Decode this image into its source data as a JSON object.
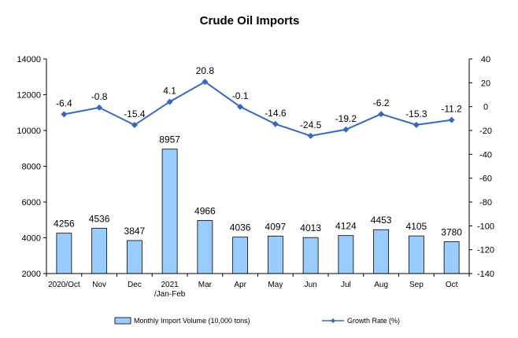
{
  "chart_data": {
    "type": "bar+line",
    "title": "Crude Oil Imports",
    "categories": [
      "2020/Oct",
      "Nov",
      "Dec",
      "2021\n/Jan-Feb",
      "Mar",
      "Apr",
      "May",
      "Jun",
      "Jul",
      "Aug",
      "Sep",
      "Oct"
    ],
    "series": [
      {
        "name": "Monthly Import Volume (10,000 tons)",
        "type": "bar",
        "axis": "left",
        "values": [
          4256,
          4536,
          3847,
          8957,
          4966,
          4036,
          4097,
          4013,
          4124,
          4453,
          4105,
          3780
        ],
        "labels": [
          "4256",
          "4536",
          "3847",
          "8957",
          "4966",
          "4036",
          "4097",
          "4013",
          "4124",
          "4453",
          "4105",
          "3780"
        ],
        "color": "#99ccff"
      },
      {
        "name": "Growth Rate (%)",
        "type": "line",
        "axis": "right",
        "values": [
          -6.4,
          -0.8,
          -15.4,
          4.1,
          20.8,
          -0.1,
          -14.6,
          -24.5,
          -19.2,
          -6.2,
          -15.3,
          -11.2
        ],
        "labels": [
          "-6.4",
          "-0.8",
          "-15.4",
          "4.1",
          "20.8",
          "-0.1",
          "-14.6",
          "-24.5",
          "-19.2",
          "-6.2",
          "-15.3",
          "-11.2"
        ],
        "color": "#3366cc"
      }
    ],
    "left_axis": {
      "ylim": [
        2000,
        14000
      ],
      "ticks": [
        "2000",
        "4000",
        "6000",
        "8000",
        "10000",
        "12000",
        "14000"
      ]
    },
    "right_axis": {
      "ylim": [
        -140,
        40
      ],
      "ticks": [
        "-140",
        "-120",
        "-100",
        "-80",
        "-60",
        "-40",
        "-20",
        "0",
        "20",
        "40"
      ]
    },
    "grid": false,
    "legend_position": "bottom"
  }
}
